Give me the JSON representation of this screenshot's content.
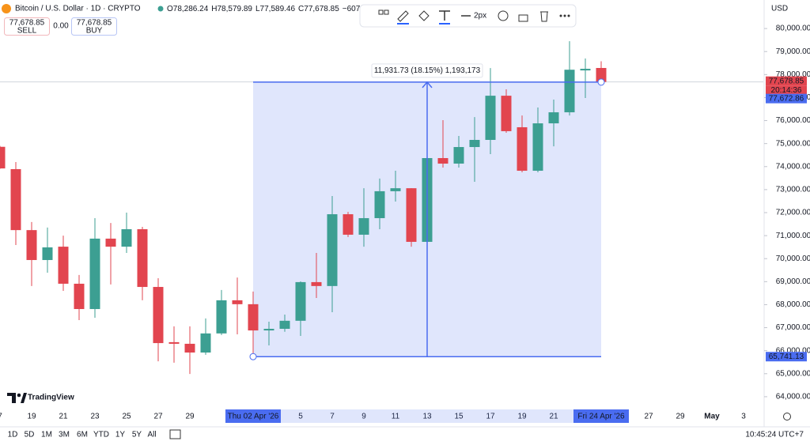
{
  "chart_data": {
    "type": "candlestick",
    "categories": [
      "7",
      null,
      "19",
      null,
      "21",
      null,
      "23",
      null,
      "25",
      null,
      "27",
      null,
      "29",
      null,
      null,
      null,
      "Thu 02 Apr '26",
      null,
      null,
      "5",
      null,
      "7",
      null,
      "9",
      null,
      "11",
      null,
      "13",
      null,
      "15",
      null,
      "17",
      null,
      "19",
      null,
      "21",
      null,
      null,
      "Fri 24 Apr '26",
      null,
      null,
      "27",
      null,
      "29",
      null,
      "May",
      null,
      "3"
    ],
    "open": [
      74860,
      73890,
      71240,
      69940,
      70520,
      68910,
      67810,
      70870,
      70520,
      71280,
      68770,
      66370,
      66300,
      65920,
      66750,
      68190,
      68020,
      66880,
      66950,
      67300,
      68980,
      68810,
      71930,
      71040,
      71760,
      72930,
      73060,
      70730,
      74370,
      74130,
      74850,
      75160,
      77080,
      75710,
      73820,
      75880,
      76360,
      78180,
      78286.24,
      null,
      null,
      null,
      null,
      null,
      null,
      null,
      null,
      null
    ],
    "high": [
      74900,
      74200,
      71590,
      71350,
      71000,
      69290,
      71760,
      71550,
      72000,
      71380,
      69150,
      67060,
      67060,
      67400,
      68640,
      69180,
      68570,
      67260,
      67570,
      69010,
      70250,
      72720,
      72030,
      73060,
      73480,
      73820,
      73060,
      74470,
      76020,
      75330,
      76150,
      78280,
      77360,
      76220,
      76570,
      76910,
      79450,
      78700,
      78579.89,
      null,
      null,
      null,
      null,
      null,
      null,
      null,
      null,
      null
    ],
    "low": [
      73900,
      70590,
      68810,
      69390,
      68600,
      67330,
      67430,
      68880,
      70250,
      68190,
      65540,
      65480,
      64990,
      65820,
      66680,
      66710,
      65741.13,
      66230,
      66820,
      66640,
      68290,
      67670,
      70940,
      70520,
      71280,
      72480,
      70520,
      70630,
      73960,
      73960,
      73340,
      74540,
      75470,
      73750,
      73750,
      74880,
      76220,
      76980,
      77589.46,
      null,
      null,
      null,
      null,
      null,
      null,
      null,
      null,
      null
    ],
    "close": [
      73920,
      71240,
      69940,
      70490,
      68910,
      67810,
      70870,
      70520,
      71280,
      68770,
      66330,
      66300,
      65920,
      66750,
      68190,
      68020,
      66880,
      66950,
      67300,
      68980,
      68810,
      71930,
      71040,
      71760,
      72930,
      73060,
      70730,
      74370,
      74130,
      74850,
      75160,
      77080,
      75540,
      73820,
      75880,
      76360,
      78210,
      78250,
      77678.85,
      null,
      null,
      null,
      null,
      null,
      null,
      null,
      null,
      null
    ],
    "up_color": "#3c9f92",
    "down_color": "#e2454f",
    "ylim": [
      63550,
      81240
    ],
    "yticks": [
      {
        "value": 64000,
        "label": "64,000.00"
      },
      {
        "value": 65000,
        "label": "65,000.00"
      },
      {
        "value": 66000,
        "label": "66,000.00"
      },
      {
        "value": 67000,
        "label": "67,000.00"
      },
      {
        "value": 68000,
        "label": "68,000.00"
      },
      {
        "value": 69000,
        "label": "69,000.00"
      },
      {
        "value": 70000,
        "label": "70,000.00"
      },
      {
        "value": 71000,
        "label": "71,000.00"
      },
      {
        "value": 72000,
        "label": "72,000.00"
      },
      {
        "value": 73000,
        "label": "73,000.00"
      },
      {
        "value": 74000,
        "label": "74,000.00"
      },
      {
        "value": 75000,
        "label": "75,000.00"
      },
      {
        "value": 76000,
        "label": "76,000.00"
      },
      {
        "value": 77000,
        "label": "77,000.00"
      },
      {
        "value": 78000,
        "label": "78,000.00"
      },
      {
        "value": 79000,
        "label": "79,000.00"
      },
      {
        "value": 80000,
        "label": "80,000.00"
      }
    ],
    "grid": false,
    "measure": {
      "label": "11,931.73 (18.15%) 1,193,173",
      "from": 16,
      "to": 38,
      "low": 65741.13,
      "high": 77672.86,
      "color": "#4a6cf0"
    },
    "price_tags": [
      {
        "value": 77678.85,
        "label": "77,678.85",
        "color": "#e2454f"
      },
      {
        "value": 77672.86,
        "label": "77,672.86",
        "color": "#4a6cf0"
      },
      {
        "value": 65741.13,
        "label": "65,741.13",
        "color": "#4a6cf0"
      }
    ],
    "countdown": "20:14:36"
  },
  "header": {
    "symbol": "Bitcoin / U.S. Dollar · 1D · CRYPTO",
    "ohlc": [
      "O78,286.24",
      "H78,579.89",
      "L77,589.46",
      "C77,678.85",
      "−607"
    ],
    "sell_price": "77,678.85",
    "sell": "SELL",
    "spread": "0.00",
    "buy_price": "77,678.85",
    "buy": "BUY",
    "currency": "USD",
    "stroke": "2px"
  },
  "footer": {
    "logo": "TradingView",
    "ranges": [
      "1D",
      "5D",
      "1M",
      "3M",
      "6M",
      "YTD",
      "1Y",
      "5Y",
      "All"
    ],
    "time": "10:45:24 UTC+7"
  }
}
